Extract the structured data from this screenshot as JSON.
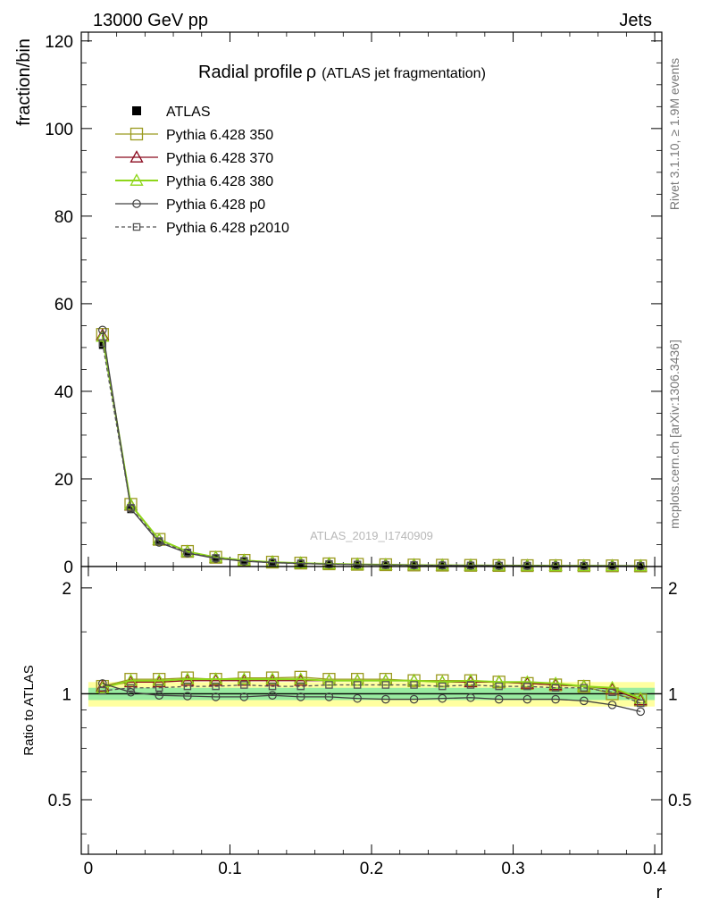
{
  "header": {
    "energy_label": "13000 GeV pp",
    "category_label": "Jets",
    "title_main": "Radial profile",
    "title_symbol": "ρ",
    "title_sub": "(ATLAS jet fragmentation)",
    "right_text_top": "Rivet 3.1.10, ≥ 1.9M events",
    "right_text_bottom": "mcplots.cern.ch [arXiv:1306.3436]",
    "watermark": "ATLAS_2019_I1740909"
  },
  "legend": [
    {
      "key": "atlas",
      "label": "ATLAS"
    },
    {
      "key": "p350",
      "label": "Pythia 6.428 350"
    },
    {
      "key": "p370",
      "label": "Pythia 6.428 370"
    },
    {
      "key": "p380",
      "label": "Pythia 6.428 380"
    },
    {
      "key": "p0",
      "label": "Pythia 6.428 p0"
    },
    {
      "key": "p2010",
      "label": "Pythia 6.428 p2010"
    }
  ],
  "colors": {
    "atlas": "#000000",
    "p350": "#9a9a1e",
    "p370": "#8b0a1e",
    "p380": "#8ed61a",
    "p0": "#404040",
    "p2010": "#555555",
    "band_outer": "#ffff80",
    "band_inner": "#7fe6a0"
  },
  "chart_data": [
    {
      "type": "line",
      "panel": "main",
      "ylabel": "fraction/bin",
      "ylim": [
        0,
        122
      ],
      "y_ticks": [
        "0",
        "20",
        "40",
        "60",
        "80",
        "100",
        "120"
      ],
      "x": [
        0.01,
        0.03,
        0.05,
        0.07,
        0.09,
        0.11,
        0.13,
        0.15,
        0.17,
        0.19,
        0.21,
        0.23,
        0.25,
        0.27,
        0.29,
        0.31,
        0.33,
        0.35,
        0.37,
        0.39
      ],
      "series": [
        {
          "key": "atlas",
          "name": "ATLAS",
          "values": [
            50.5,
            13.0,
            5.6,
            3.1,
            1.9,
            1.25,
            0.9,
            0.7,
            0.55,
            0.45,
            0.37,
            0.31,
            0.27,
            0.24,
            0.21,
            0.19,
            0.17,
            0.16,
            0.15,
            0.14
          ]
        },
        {
          "key": "p350",
          "name": "Pythia 6.428 350",
          "values": [
            53.0,
            14.2,
            6.2,
            3.45,
            2.1,
            1.4,
            1.0,
            0.78,
            0.61,
            0.5,
            0.41,
            0.34,
            0.3,
            0.26,
            0.23,
            0.2,
            0.18,
            0.17,
            0.15,
            0.13
          ]
        },
        {
          "key": "p370",
          "name": "Pythia 6.428 370",
          "values": [
            52.8,
            14.0,
            6.1,
            3.4,
            2.08,
            1.38,
            0.99,
            0.77,
            0.6,
            0.49,
            0.4,
            0.34,
            0.29,
            0.26,
            0.23,
            0.2,
            0.18,
            0.17,
            0.15,
            0.13
          ]
        },
        {
          "key": "p380",
          "name": "Pythia 6.428 380",
          "values": [
            52.5,
            14.1,
            6.15,
            3.4,
            2.1,
            1.39,
            0.99,
            0.77,
            0.6,
            0.49,
            0.4,
            0.34,
            0.29,
            0.26,
            0.23,
            0.2,
            0.18,
            0.17,
            0.15,
            0.13
          ]
        },
        {
          "key": "p0",
          "name": "Pythia 6.428 p0",
          "values": [
            54.0,
            13.2,
            5.5,
            3.05,
            1.85,
            1.21,
            0.88,
            0.68,
            0.53,
            0.43,
            0.36,
            0.3,
            0.26,
            0.23,
            0.2,
            0.18,
            0.16,
            0.15,
            0.14,
            0.12
          ]
        },
        {
          "key": "p2010",
          "name": "Pythia 6.428 p2010",
          "values": [
            51.0,
            13.4,
            5.8,
            3.2,
            1.95,
            1.3,
            0.93,
            0.72,
            0.56,
            0.46,
            0.38,
            0.32,
            0.27,
            0.24,
            0.21,
            0.19,
            0.17,
            0.16,
            0.15,
            0.13
          ]
        }
      ]
    },
    {
      "type": "line",
      "panel": "ratio",
      "xlabel": "r",
      "ylabel": "Ratio to ATLAS",
      "xlim": [
        -0.005,
        0.405
      ],
      "ylim": [
        0.35,
        2.3
      ],
      "x_ticks": [
        "0",
        "0.1",
        "0.2",
        "0.3",
        "0.4"
      ],
      "y_ticks": [
        "0.5",
        "1",
        "2"
      ],
      "x": [
        0.01,
        0.03,
        0.05,
        0.07,
        0.09,
        0.11,
        0.13,
        0.15,
        0.17,
        0.19,
        0.21,
        0.23,
        0.25,
        0.27,
        0.29,
        0.31,
        0.33,
        0.35,
        0.37,
        0.39
      ],
      "reference_band": {
        "outer": [
          0.92,
          1.08
        ],
        "inner": [
          0.96,
          1.04
        ]
      },
      "series": [
        {
          "key": "p350",
          "name": "Pythia 6.428 350",
          "values": [
            1.05,
            1.1,
            1.1,
            1.11,
            1.1,
            1.11,
            1.11,
            1.115,
            1.1,
            1.1,
            1.1,
            1.09,
            1.09,
            1.09,
            1.08,
            1.07,
            1.06,
            1.05,
            1.0,
            0.96
          ]
        },
        {
          "key": "p370",
          "name": "Pythia 6.428 370",
          "values": [
            1.05,
            1.08,
            1.08,
            1.09,
            1.09,
            1.09,
            1.09,
            1.09,
            1.09,
            1.09,
            1.09,
            1.09,
            1.08,
            1.08,
            1.08,
            1.07,
            1.06,
            1.05,
            1.03,
            0.96
          ]
        },
        {
          "key": "p380",
          "name": "Pythia 6.428 380",
          "values": [
            1.04,
            1.09,
            1.09,
            1.1,
            1.1,
            1.1,
            1.1,
            1.1,
            1.09,
            1.09,
            1.09,
            1.09,
            1.08,
            1.09,
            1.08,
            1.08,
            1.07,
            1.05,
            1.04,
            0.97
          ]
        },
        {
          "key": "p0",
          "name": "Pythia 6.428 p0",
          "values": [
            1.07,
            1.01,
            0.99,
            0.985,
            0.98,
            0.98,
            0.99,
            0.98,
            0.98,
            0.97,
            0.965,
            0.965,
            0.97,
            0.975,
            0.965,
            0.965,
            0.965,
            0.955,
            0.93,
            0.89
          ]
        },
        {
          "key": "p2010",
          "name": "Pythia 6.428 p2010",
          "values": [
            1.02,
            1.04,
            1.04,
            1.05,
            1.05,
            1.06,
            1.05,
            1.05,
            1.06,
            1.06,
            1.06,
            1.06,
            1.05,
            1.06,
            1.05,
            1.05,
            1.04,
            1.04,
            1.01,
            0.94
          ]
        }
      ]
    }
  ]
}
